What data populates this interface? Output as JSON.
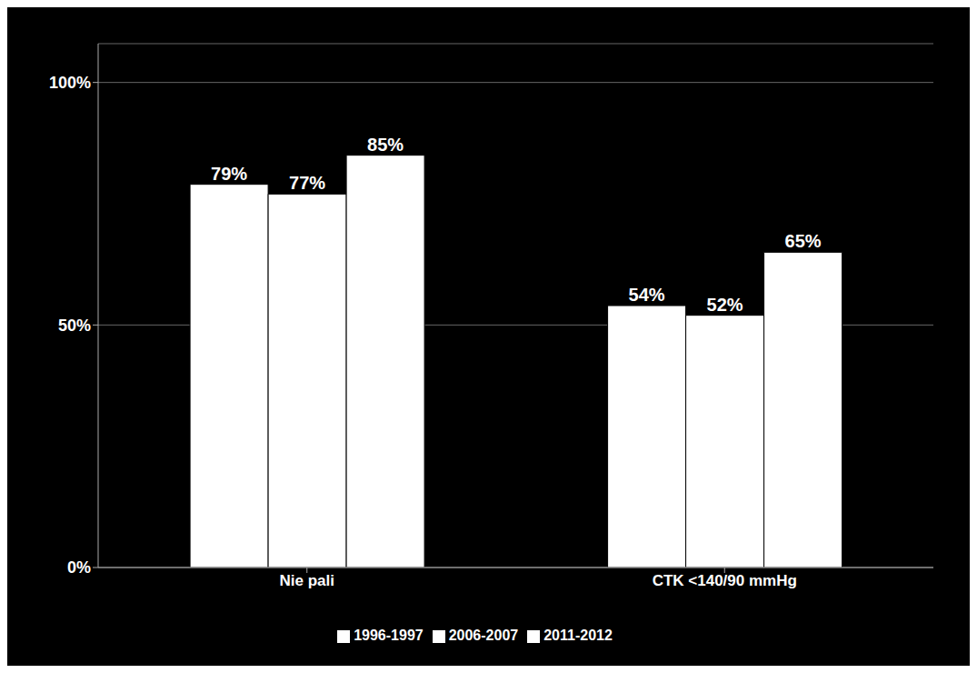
{
  "chart_data": {
    "type": "bar",
    "categories": [
      "Nie pali",
      "CTK <140/90 mmHg"
    ],
    "series": [
      {
        "name": "1996-1997",
        "color": "#ffffff",
        "values": [
          79,
          54
        ],
        "value_labels": [
          "79%",
          "54%"
        ]
      },
      {
        "name": "2006-2007",
        "color": "#ffffff",
        "values": [
          77,
          52
        ],
        "value_labels": [
          "77%",
          "52%"
        ]
      },
      {
        "name": "2011-2012",
        "color": "#ffffff",
        "values": [
          85,
          65
        ],
        "value_labels": [
          "85%",
          "65%"
        ]
      }
    ],
    "ylim": [
      0,
      108
    ],
    "yticks": [
      {
        "value": 0,
        "label": "0%"
      },
      {
        "value": 50,
        "label": "50%"
      },
      {
        "value": 100,
        "label": "100%"
      }
    ],
    "grid": true,
    "data_labels": true,
    "legend": "bottom"
  }
}
